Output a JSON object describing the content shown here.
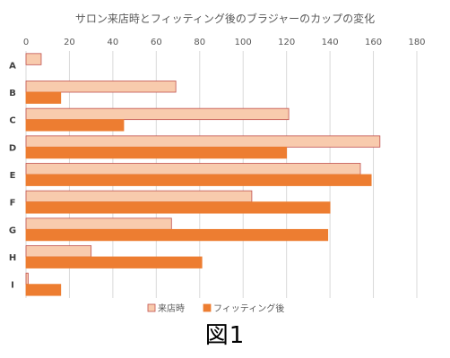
{
  "chart_data": {
    "type": "bar",
    "orientation": "horizontal",
    "title": "サロン来店時とフィッティング後のブラジャーのカップの変化",
    "xlabel": "",
    "ylabel": "",
    "xlim": [
      0,
      180
    ],
    "xticks": [
      0,
      20,
      40,
      60,
      80,
      100,
      120,
      140,
      160,
      180
    ],
    "categories": [
      "A",
      "B",
      "C",
      "D",
      "E",
      "F",
      "G",
      "H",
      "I"
    ],
    "series": [
      {
        "name": "来店時",
        "values": [
          7,
          69,
          121,
          163,
          154,
          104,
          67,
          30,
          1
        ],
        "color": "#F8CBAD",
        "stroke": "#C0504D"
      },
      {
        "name": "フィッティング後",
        "values": [
          0,
          16,
          45,
          120,
          159,
          140,
          139,
          81,
          16
        ],
        "color": "#ED7D31",
        "stroke": "#ED7D31"
      }
    ],
    "grid": true,
    "legend_position": "bottom"
  },
  "caption": "図1"
}
